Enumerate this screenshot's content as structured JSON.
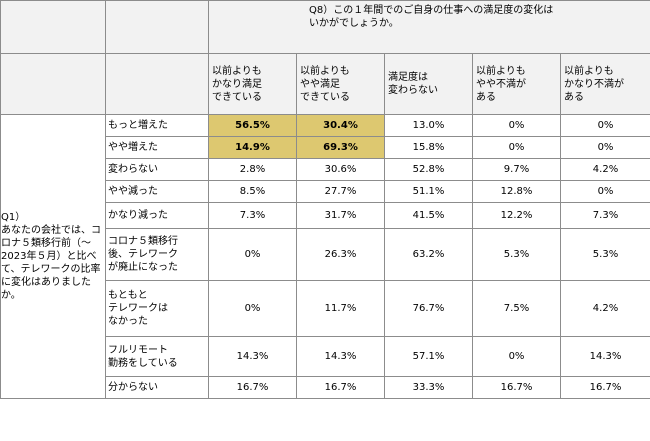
{
  "question_cols": {
    "label": "Q8）この１年間でのご自身の仕事への満足度の変化は\nいかがでしょうか。",
    "columns": [
      "以前よりも\nかなり満足\nできている",
      "以前よりも\nやや満足\nできている",
      "満足度は\n変わらない",
      "以前よりも\nやや不満が\nある",
      "以前よりも\nかなり不満が\nある"
    ]
  },
  "question_rows": {
    "label": "Q1）\nあなたの会社では、コロナ５類移行前（～2023年５月）と比べて、テレワークの比率に変化はありましたか。"
  },
  "highlight_color": "#ddc870",
  "rows": [
    {
      "label": "もっと増えた",
      "values": [
        "56.5%",
        "30.4%",
        "13.0%",
        "0%",
        "0%"
      ],
      "highlight": [
        true,
        true,
        false,
        false,
        false
      ]
    },
    {
      "label": "やや増えた",
      "values": [
        "14.9%",
        "69.3%",
        "15.8%",
        "0%",
        "0%"
      ],
      "highlight": [
        true,
        true,
        false,
        false,
        false
      ]
    },
    {
      "label": "変わらない",
      "values": [
        "2.8%",
        "30.6%",
        "52.8%",
        "9.7%",
        "4.2%"
      ],
      "highlight": [
        false,
        false,
        false,
        false,
        false
      ]
    },
    {
      "label": "やや減った",
      "values": [
        "8.5%",
        "27.7%",
        "51.1%",
        "12.8%",
        "0%"
      ],
      "highlight": [
        false,
        false,
        false,
        false,
        false
      ]
    },
    {
      "label": "かなり減った",
      "values": [
        "7.3%",
        "31.7%",
        "41.5%",
        "12.2%",
        "7.3%"
      ],
      "highlight": [
        false,
        false,
        false,
        false,
        false
      ]
    },
    {
      "label": "コロナ５類移行\n後、テレワーク\nが廃止になった",
      "values": [
        "0%",
        "26.3%",
        "63.2%",
        "5.3%",
        "5.3%"
      ],
      "highlight": [
        false,
        false,
        false,
        false,
        false
      ]
    },
    {
      "label": "もともと\nテレワークは\nなかった",
      "values": [
        "0%",
        "11.7%",
        "76.7%",
        "7.5%",
        "4.2%"
      ],
      "highlight": [
        false,
        false,
        false,
        false,
        false
      ]
    },
    {
      "label": "フルリモート\n勤務をしている",
      "values": [
        "14.3%",
        "14.3%",
        "57.1%",
        "0%",
        "14.3%"
      ],
      "highlight": [
        false,
        false,
        false,
        false,
        false
      ]
    },
    {
      "label": "分からない",
      "values": [
        "16.7%",
        "16.7%",
        "33.3%",
        "16.7%",
        "16.7%"
      ],
      "highlight": [
        false,
        false,
        false,
        false,
        false
      ]
    }
  ]
}
